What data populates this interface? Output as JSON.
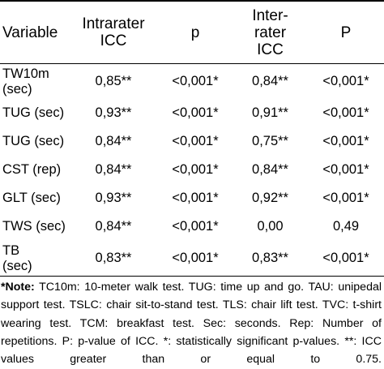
{
  "table": {
    "headers": [
      {
        "lines": [
          "Variable"
        ]
      },
      {
        "lines": [
          "Intrarater",
          "ICC"
        ]
      },
      {
        "lines": [
          "p"
        ]
      },
      {
        "lines": [
          "Inter-",
          "rater",
          "ICC"
        ]
      },
      {
        "lines": [
          "P"
        ]
      }
    ],
    "rows": [
      {
        "variable": [
          "TW10m",
          "(sec)"
        ],
        "intra_icc": "0,85**",
        "intra_p": "<0,001*",
        "inter_icc": "0,84**",
        "inter_p": "<0,001*"
      },
      {
        "variable": [
          "TUG (sec)"
        ],
        "intra_icc": "0,93**",
        "intra_p": "<0,001*",
        "inter_icc": "0,91**",
        "inter_p": "<0,001*"
      },
      {
        "variable": [
          "TUG (sec)"
        ],
        "intra_icc": "0,84**",
        "intra_p": "<0,001*",
        "inter_icc": "0,75**",
        "inter_p": "<0,001*"
      },
      {
        "variable": [
          "CST (rep)"
        ],
        "intra_icc": "0,84**",
        "intra_p": "<0,001*",
        "inter_icc": "0,84**",
        "inter_p": "<0,001*"
      },
      {
        "variable": [
          "GLT (sec)"
        ],
        "intra_icc": "0,93**",
        "intra_p": "<0,001*",
        "inter_icc": "0,92**",
        "inter_p": "<0,001*"
      },
      {
        "variable": [
          "TWS (sec)"
        ],
        "intra_icc": "0,84**",
        "intra_p": "<0,001*",
        "inter_icc": "0,00",
        "inter_p": "0,49"
      },
      {
        "variable": [
          "TB",
          "(sec)"
        ],
        "intra_icc": "0,83**",
        "intra_p": "<0,001*",
        "inter_icc": "0,83**",
        "inter_p": "<0,001*"
      }
    ]
  },
  "note": {
    "label": "*Note:",
    "text": " TC10m: 10-meter walk test. TUG: time up and go. TAU: unipedal support test. TSLC: chair sit-to-stand test. TLS: chair lift test. TVC: t-shirt wearing test. TCM: breakfast test. Sec: seconds. Rep: Number of repetitions. P: p-value of ICC. *: statistically significant p-values. **: ICC values greater than or equal to 0.75."
  }
}
